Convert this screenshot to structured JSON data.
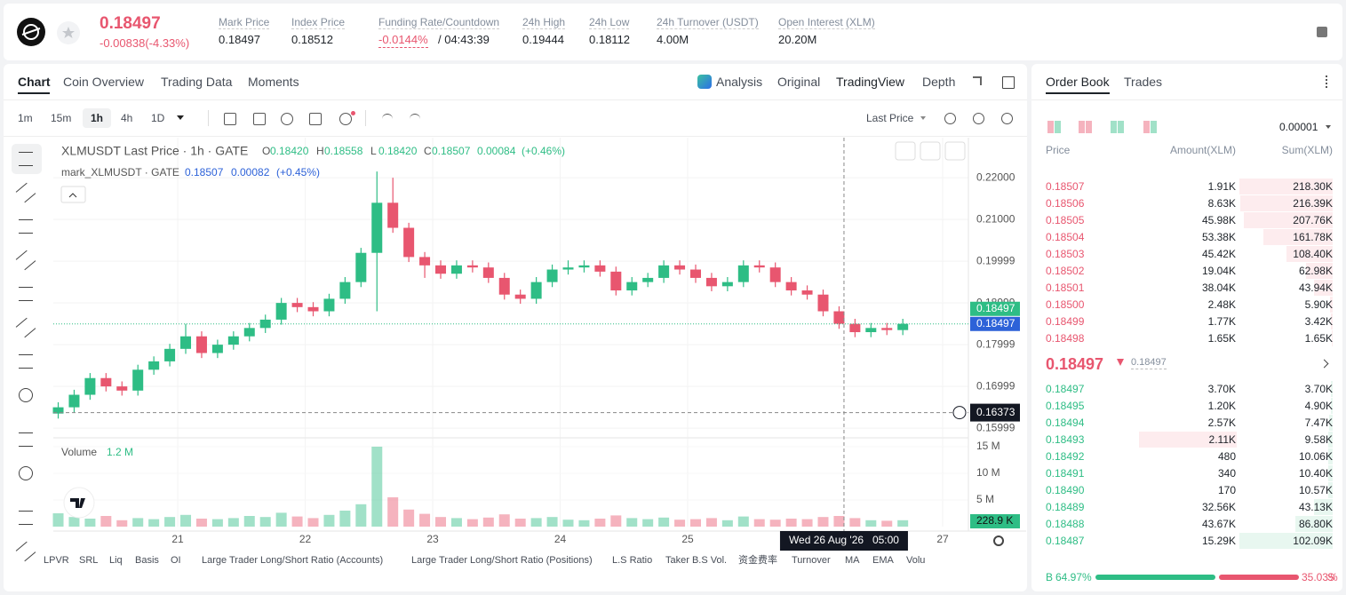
{
  "header": {
    "price": "0.18497",
    "change": "-0.00838(-4.33%)",
    "stats": [
      {
        "label": "Mark Price",
        "value": "0.18497"
      },
      {
        "label": "Index Price",
        "value": "0.18512"
      },
      {
        "label": "Funding Rate/Countdown",
        "value": "-0.0144%",
        "extra": "/ 04:43:39"
      },
      {
        "label": "24h High",
        "value": "0.19444"
      },
      {
        "label": "24h Low",
        "value": "0.18112"
      },
      {
        "label": "24h Turnover (USDT)",
        "value": "4.00M"
      },
      {
        "label": "Open Interest (XLM)",
        "value": "20.20M"
      }
    ]
  },
  "tabs": [
    "Chart",
    "Coin Overview",
    "Trading Data",
    "Moments"
  ],
  "views": [
    "Analysis",
    "Original",
    "TradingView",
    "Depth"
  ],
  "intervals": [
    "1m",
    "15m",
    "1h",
    "4h",
    "1D"
  ],
  "price_type": "Last Price",
  "indicators": [
    "LPVR",
    "SRL",
    "Liq",
    "Basis",
    "OI",
    "Large Trader Long/Short Ratio (Accounts)",
    "Large Trader Long/Short Ratio (Positions)",
    "L.S Ratio",
    "Taker B.S Vol.",
    "资金费率",
    "Turnover",
    "MA",
    "EMA",
    "Volu"
  ],
  "chart_data": {
    "type": "candlestick",
    "legend": {
      "title": "XLMUSDT Last Price · 1h · GATE",
      "ohlc_labels": [
        "O",
        "H",
        "L",
        "C"
      ],
      "ohlc": [
        "0.18420",
        "0.18558",
        "0.18420",
        "0.18507"
      ],
      "change": "0.00084",
      "change_pct": "(+0.46%)",
      "mark_title": "mark_XLMUSDT · GATE",
      "mark_value": "0.18507",
      "mark_change": "0.00082",
      "mark_change_pct": "(+0.45%)",
      "volume_title": "Volume",
      "volume_value": "1.2 M"
    },
    "x": [
      20.0625,
      20.1875,
      20.3125,
      20.4375,
      20.5625,
      20.6875,
      20.8125,
      20.9375,
      21.0625,
      21.1875,
      21.3125,
      21.4375,
      21.5625,
      21.6875,
      21.8125,
      21.9375,
      22.0625,
      22.1875,
      22.3125,
      22.4375,
      22.5625,
      22.6875,
      22.8125,
      22.9375,
      23.0625,
      23.1875,
      23.3125,
      23.4375,
      23.5625,
      23.6875,
      23.8125,
      23.9375,
      24.0625,
      24.1875,
      24.3125,
      24.4375,
      24.5625,
      24.6875,
      24.8125,
      24.9375,
      25.0625,
      25.1875,
      25.3125,
      25.4375,
      25.5625,
      25.6875,
      25.8125,
      25.9375,
      26.0625,
      26.1875,
      26.3125,
      26.4375,
      26.5625,
      26.6875
    ],
    "open": [
      0.1635,
      0.165,
      0.168,
      0.172,
      0.17,
      0.169,
      0.174,
      0.176,
      0.179,
      0.182,
      0.178,
      0.18,
      0.182,
      0.184,
      0.186,
      0.19,
      0.189,
      0.188,
      0.191,
      0.195,
      0.202,
      0.214,
      0.208,
      0.201,
      0.199,
      0.197,
      0.199,
      0.1985,
      0.196,
      0.192,
      0.191,
      0.195,
      0.198,
      0.1985,
      0.199,
      0.1975,
      0.193,
      0.195,
      0.196,
      0.199,
      0.198,
      0.196,
      0.194,
      0.195,
      0.199,
      0.1985,
      0.195,
      0.193,
      0.192,
      0.188,
      0.185,
      0.183,
      0.184,
      0.1835
    ],
    "high": [
      0.1662,
      0.1692,
      0.1732,
      0.1732,
      0.1712,
      0.1752,
      0.1772,
      0.1802,
      0.185,
      0.1832,
      0.1812,
      0.1832,
      0.1852,
      0.1872,
      0.1912,
      0.1912,
      0.1902,
      0.1922,
      0.1962,
      0.2032,
      0.2215,
      0.22,
      0.2092,
      0.2022,
      0.2002,
      0.2002,
      0.2002,
      0.1997,
      0.1972,
      0.1932,
      0.1962,
      0.1992,
      0.2002,
      0.2002,
      0.2002,
      0.1987,
      0.1962,
      0.1972,
      0.2002,
      0.2002,
      0.1992,
      0.1972,
      0.1962,
      0.2002,
      0.2002,
      0.1997,
      0.1962,
      0.1942,
      0.1932,
      0.1892,
      0.1862,
      0.1852,
      0.1852,
      0.1862
    ],
    "low": [
      0.1623,
      0.1638,
      0.1668,
      0.1688,
      0.1678,
      0.1678,
      0.1728,
      0.1748,
      0.1778,
      0.1768,
      0.1768,
      0.1788,
      0.1808,
      0.1828,
      0.1848,
      0.1878,
      0.1868,
      0.1868,
      0.1898,
      0.1938,
      0.188,
      0.2068,
      0.1998,
      0.196,
      0.1958,
      0.1958,
      0.1973,
      0.1948,
      0.1908,
      0.1898,
      0.1898,
      0.1938,
      0.1968,
      0.1973,
      0.1963,
      0.1918,
      0.1918,
      0.1938,
      0.1948,
      0.1968,
      0.1948,
      0.1928,
      0.1928,
      0.1938,
      0.1973,
      0.1938,
      0.1918,
      0.1908,
      0.1868,
      0.1838,
      0.1818,
      0.1818,
      0.1823,
      0.1823
    ],
    "close": [
      0.165,
      0.168,
      0.172,
      0.17,
      0.169,
      0.174,
      0.176,
      0.179,
      0.182,
      0.178,
      0.18,
      0.182,
      0.184,
      0.186,
      0.19,
      0.189,
      0.188,
      0.191,
      0.195,
      0.202,
      0.214,
      0.208,
      0.201,
      0.199,
      0.197,
      0.199,
      0.1985,
      0.196,
      0.192,
      0.191,
      0.195,
      0.198,
      0.1985,
      0.199,
      0.1975,
      0.193,
      0.195,
      0.196,
      0.199,
      0.198,
      0.196,
      0.194,
      0.195,
      0.199,
      0.1985,
      0.195,
      0.193,
      0.192,
      0.188,
      0.185,
      0.183,
      0.184,
      0.1835,
      0.185
    ],
    "volume": [
      2.5,
      1.8,
      1.5,
      2.0,
      1.2,
      1.6,
      1.4,
      1.8,
      2.2,
      1.5,
      1.4,
      1.6,
      2.0,
      1.8,
      2.6,
      1.9,
      1.6,
      2.2,
      3.0,
      4.2,
      15,
      5.5,
      3.2,
      2.4,
      1.8,
      1.6,
      1.4,
      1.7,
      2.3,
      1.5,
      1.6,
      1.8,
      1.3,
      1.2,
      1.5,
      2.1,
      1.6,
      1.4,
      1.7,
      1.3,
      1.4,
      1.6,
      1.2,
      1.9,
      1.4,
      1.3,
      1.5,
      1.4,
      1.8,
      2.0,
      1.6,
      1.2,
      1.1,
      1.2
    ],
    "up_color": "#2ebd85",
    "down_color": "#e8566f",
    "xlim": [
      20.024,
      27.202
    ],
    "xticks": [
      21,
      22,
      23,
      24,
      25,
      27
    ],
    "ylim": [
      0.1579,
      0.2296
    ],
    "yticks": [
      {
        "value": 0.22,
        "label": "0.22000"
      },
      {
        "value": 0.21,
        "label": "0.21000"
      },
      0.19999,
      0.18999,
      0.17999,
      0.16999,
      0.15999
    ],
    "vlim": [
      0,
      16.33
    ],
    "vticks": [
      {
        "value": 5,
        "label": "5 M"
      },
      {
        "value": 10,
        "label": "10 M"
      },
      {
        "value": 15,
        "label": "15 M"
      }
    ],
    "last_price": {
      "value": 0.18497,
      "label": "0.18497"
    },
    "volume_last": "228.9 K",
    "crosshair": {
      "x": 26.226,
      "date": "Wed 26 Aug '26",
      "time": "05:00",
      "price": {
        "value": 0.16373,
        "label": "0.16373"
      }
    },
    "grid": true
  },
  "order_book": {
    "tabs": [
      "Order Book",
      "Trades"
    ],
    "precision": "0.00001",
    "columns": [
      "Price",
      "Amount(XLM)",
      "Sum(XLM)"
    ],
    "asks": [
      [
        "0.18507",
        "1.91K",
        "218.30K"
      ],
      [
        "0.18506",
        "8.63K",
        "216.39K"
      ],
      [
        "0.18505",
        "45.98K",
        "207.76K"
      ],
      [
        "0.18504",
        "53.38K",
        "161.78K"
      ],
      [
        "0.18503",
        "45.42K",
        "108.40K"
      ],
      [
        "0.18502",
        "19.04K",
        "62.98K"
      ],
      [
        "0.18501",
        "38.04K",
        "43.94K"
      ],
      [
        "0.18500",
        "2.48K",
        "5.90K"
      ],
      [
        "0.18499",
        "1.77K",
        "3.42K"
      ],
      [
        "0.18498",
        "1.65K",
        "1.65K"
      ]
    ],
    "mid_price": "0.18497",
    "mark_price": "0.18497",
    "bids": [
      [
        "0.18497",
        "3.70K",
        "3.70K"
      ],
      [
        "0.18495",
        "1.20K",
        "4.90K"
      ],
      [
        "0.18494",
        "2.57K",
        "7.47K"
      ],
      [
        "0.18493",
        "2.11K",
        "9.58K"
      ],
      [
        "0.18492",
        "480",
        "10.06K"
      ],
      [
        "0.18491",
        "340",
        "10.40K"
      ],
      [
        "0.18490",
        "170",
        "10.57K"
      ],
      [
        "0.18489",
        "32.56K",
        "43.13K"
      ],
      [
        "0.18488",
        "43.67K",
        "86.80K"
      ],
      [
        "0.18487",
        "15.29K",
        "102.09K"
      ]
    ],
    "buy_label": "B",
    "buy_ratio": "64.97%",
    "sell_ratio": "35.03%",
    "sell_label": "S"
  }
}
